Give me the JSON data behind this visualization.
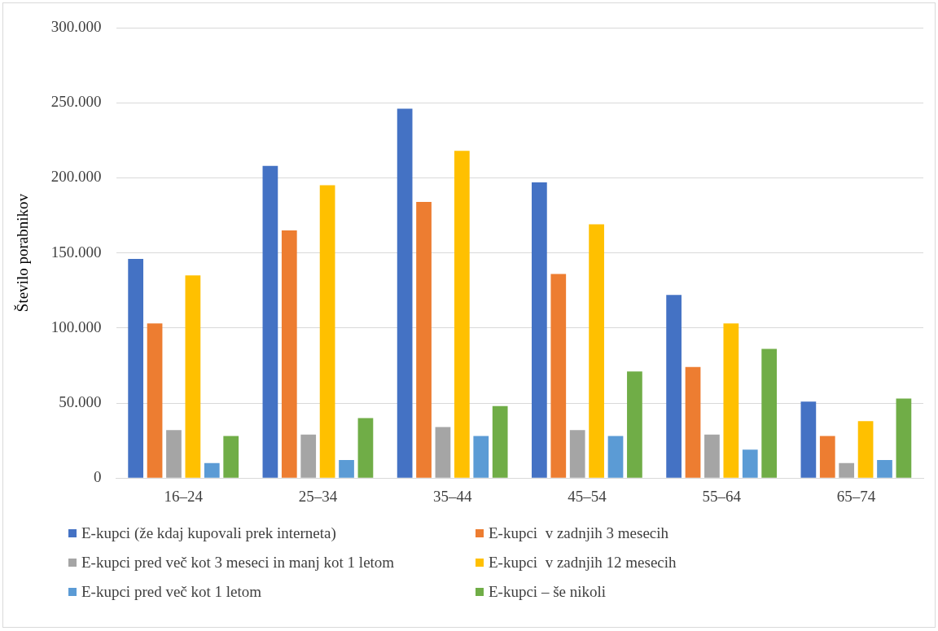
{
  "chart_data": {
    "type": "bar",
    "ylabel": "Število porabnikov",
    "categories": [
      "16–24",
      "25–34",
      "35–44",
      "45–54",
      "55–64",
      "65–74"
    ],
    "series": [
      {
        "name": "E-kupci (že kdaj kupovali prek interneta)",
        "color": "#4472c4",
        "values": [
          146000,
          208000,
          246000,
          197000,
          122000,
          51000
        ]
      },
      {
        "name": "E-kupci  v zadnjih 3 mesecih",
        "color": "#ed7d31",
        "values": [
          103000,
          165000,
          184000,
          136000,
          74000,
          28000
        ]
      },
      {
        "name": "E-kupci pred več kot 3 meseci in manj kot 1 letom",
        "color": "#a5a5a5",
        "values": [
          32000,
          29000,
          34000,
          32000,
          29000,
          10000
        ]
      },
      {
        "name": "E-kupci  v zadnjih 12 mesecih",
        "color": "#ffc000",
        "values": [
          135000,
          195000,
          218000,
          169000,
          103000,
          38000
        ]
      },
      {
        "name": "E-kupci pred več kot 1 letom",
        "color": "#5b9bd5",
        "values": [
          10000,
          12000,
          28000,
          28000,
          19000,
          12000
        ]
      },
      {
        "name": "E-kupci – še nikoli",
        "color": "#70ad47",
        "values": [
          28000,
          40000,
          48000,
          71000,
          86000,
          53000
        ]
      }
    ],
    "ylim": [
      0,
      300000
    ],
    "yticks": [
      {
        "value": 0,
        "label": "0"
      },
      {
        "value": 50000,
        "label": "50.000"
      },
      {
        "value": 100000,
        "label": "100.000"
      },
      {
        "value": 150000,
        "label": "150.000"
      },
      {
        "value": 200000,
        "label": "200.000"
      },
      {
        "value": 250000,
        "label": "250.000"
      },
      {
        "value": 300000,
        "label": "300.000"
      }
    ],
    "grid": "y",
    "legend": "bottom"
  }
}
